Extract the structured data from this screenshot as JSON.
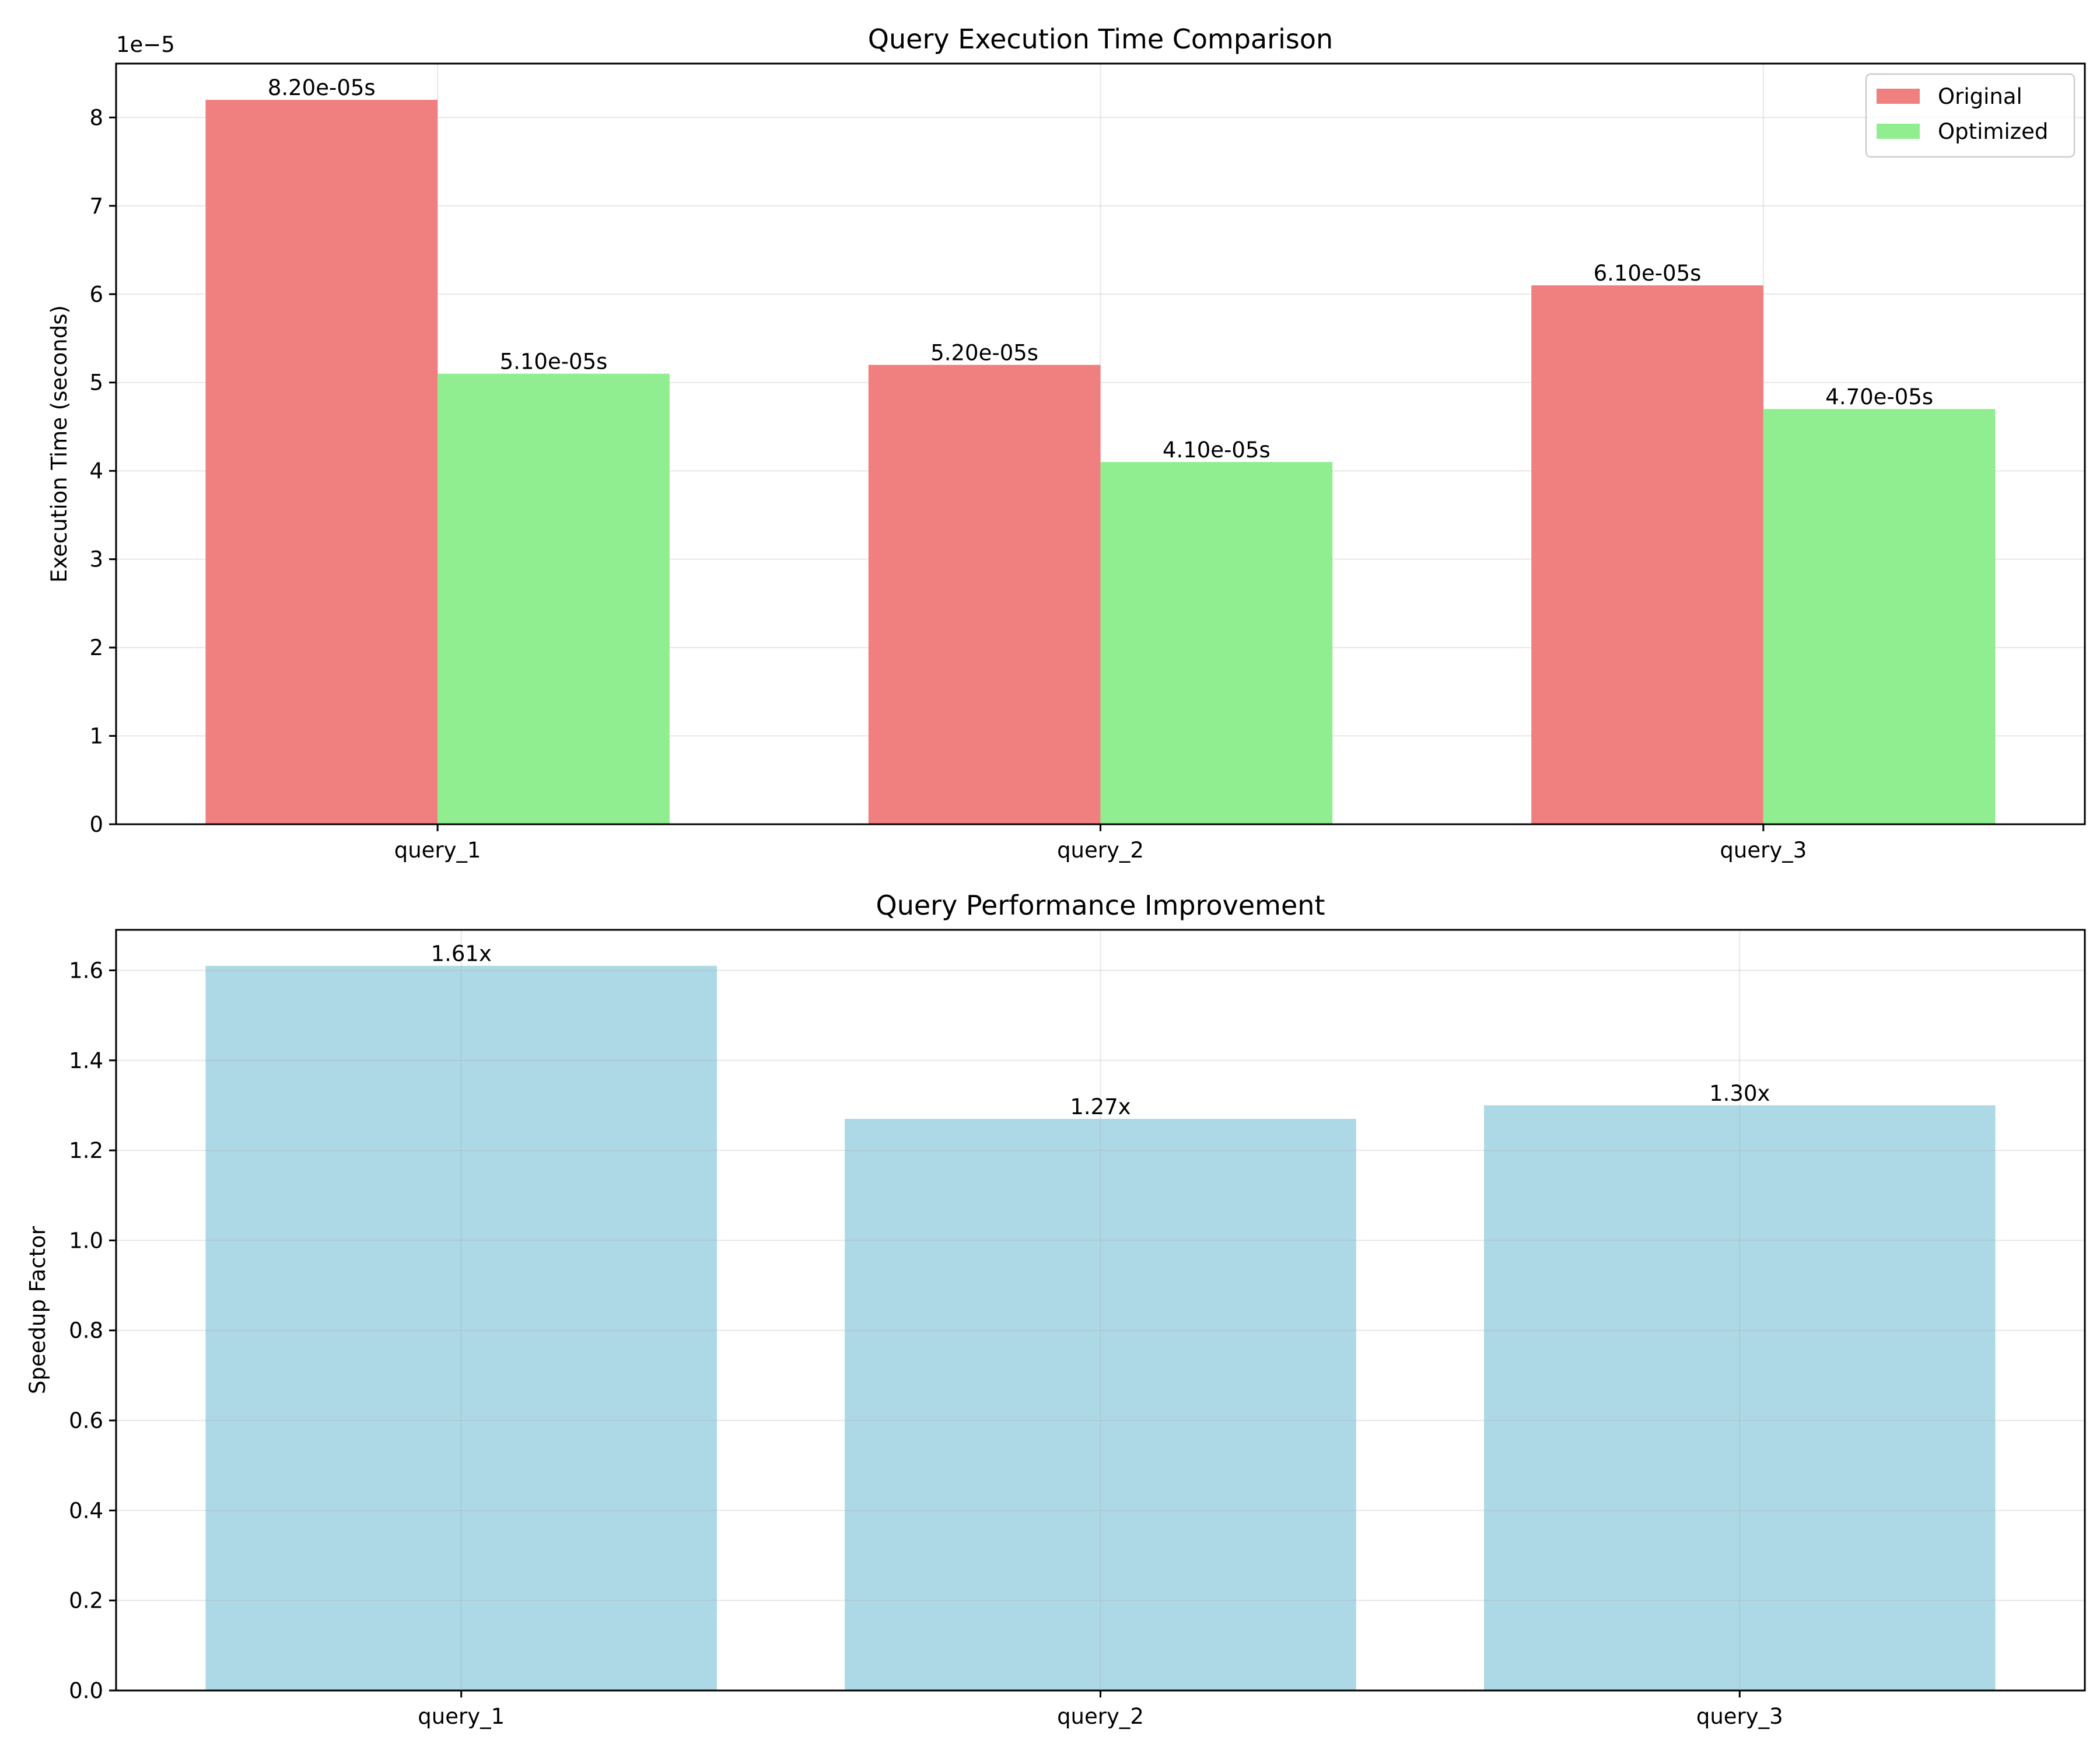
{
  "chart_data": [
    {
      "type": "bar",
      "title": "Query Execution Time Comparison",
      "xlabel": "",
      "ylabel": "Execution Time (seconds)",
      "offset_text": "1e−5",
      "categories": [
        "query_1",
        "query_2",
        "query_3"
      ],
      "series": [
        {
          "name": "Original",
          "color": "#f08080",
          "values": [
            8.2e-05,
            5.2e-05,
            6.1e-05
          ],
          "labels": [
            "8.20e-05s",
            "5.20e-05s",
            "6.10e-05s"
          ]
        },
        {
          "name": "Optimized",
          "color": "#90ee90",
          "values": [
            5.1e-05,
            4.1e-05,
            4.7e-05
          ],
          "labels": [
            "5.10e-05s",
            "4.10e-05s",
            "4.70e-05s"
          ]
        }
      ],
      "ylim": [
        0,
        8.61e-05
      ],
      "yticks": [
        0,
        1e-05,
        2e-05,
        3e-05,
        4e-05,
        5e-05,
        6e-05,
        7e-05,
        8e-05
      ],
      "ytick_labels": [
        "0",
        "1",
        "2",
        "3",
        "4",
        "5",
        "6",
        "7",
        "8"
      ],
      "grid": true,
      "legend_position": "top-right"
    },
    {
      "type": "bar",
      "title": "Query Performance Improvement",
      "xlabel": "",
      "ylabel": "Speedup Factor",
      "categories": [
        "query_1",
        "query_2",
        "query_3"
      ],
      "series": [
        {
          "color": "#add8e6",
          "values": [
            1.61,
            1.27,
            1.3
          ],
          "labels": [
            "1.61x",
            "1.27x",
            "1.30x"
          ]
        }
      ],
      "ylim": [
        0,
        1.69
      ],
      "yticks": [
        0.0,
        0.2,
        0.4,
        0.6,
        0.8,
        1.0,
        1.2,
        1.4,
        1.6
      ],
      "ytick_labels": [
        "0.0",
        "0.2",
        "0.4",
        "0.6",
        "0.8",
        "1.0",
        "1.2",
        "1.4",
        "1.6"
      ],
      "grid": true
    }
  ]
}
